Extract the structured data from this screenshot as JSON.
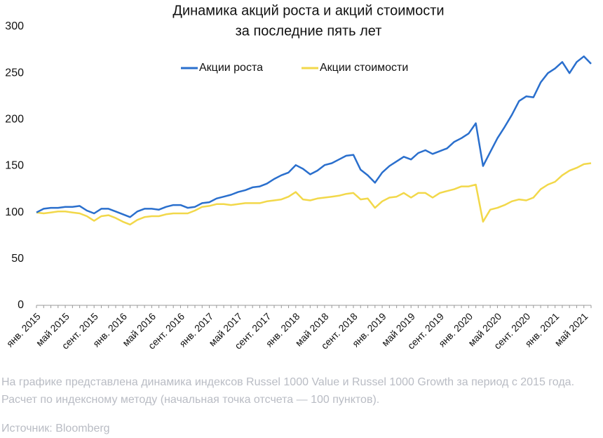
{
  "chart_data": {
    "type": "line",
    "title_lines": [
      "Динамика акций роста и акций стоимости",
      "за последние пять лет"
    ],
    "categories": [
      "янв. 2015",
      null,
      null,
      null,
      "май 2015",
      null,
      null,
      null,
      "сент. 2015",
      null,
      null,
      null,
      "янв. 2016",
      null,
      null,
      null,
      "май 2016",
      null,
      null,
      null,
      "сент. 2016",
      null,
      null,
      null,
      "янв. 2017",
      null,
      null,
      null,
      "май 2017",
      null,
      null,
      null,
      "сент. 2017",
      null,
      null,
      null,
      "янв. 2018",
      null,
      null,
      null,
      "май 2018",
      null,
      null,
      null,
      "сент. 2018",
      null,
      null,
      null,
      "янв. 2019",
      null,
      null,
      null,
      "май 2019",
      null,
      null,
      null,
      "сент. 2019",
      null,
      null,
      null,
      "янв. 2020",
      null,
      null,
      null,
      "май 2020",
      null,
      null,
      null,
      "сент. 2020",
      null,
      null,
      null,
      "янв. 2021",
      null,
      null,
      null,
      "май 2021",
      null
    ],
    "series": [
      {
        "name": "Акции роста",
        "color": "#2a6fcd",
        "values": [
          100,
          104,
          105,
          105,
          106,
          106,
          107,
          102,
          99,
          104,
          104,
          101,
          98,
          95,
          101,
          104,
          104,
          103,
          106,
          108,
          108,
          105,
          106,
          110,
          111,
          115,
          117,
          119,
          122,
          124,
          127,
          128,
          131,
          136,
          140,
          143,
          151,
          147,
          141,
          145,
          151,
          153,
          157,
          161,
          162,
          146,
          140,
          132,
          143,
          150,
          155,
          160,
          157,
          164,
          167,
          163,
          166,
          169,
          176,
          180,
          185,
          196,
          150,
          165,
          180,
          192,
          205,
          220,
          225,
          224,
          240,
          250,
          255,
          262,
          250,
          262,
          268,
          260
        ]
      },
      {
        "name": "Акции стоимости",
        "color": "#f2d84a",
        "values": [
          100,
          99,
          100,
          101,
          101,
          100,
          99,
          96,
          91,
          96,
          97,
          94,
          90,
          87,
          92,
          95,
          96,
          96,
          98,
          99,
          99,
          99,
          102,
          106,
          107,
          109,
          109,
          108,
          109,
          110,
          110,
          110,
          112,
          113,
          114,
          117,
          122,
          114,
          113,
          115,
          116,
          117,
          118,
          120,
          121,
          114,
          115,
          105,
          112,
          116,
          117,
          121,
          116,
          121,
          121,
          116,
          121,
          123,
          125,
          128,
          128,
          130,
          90,
          103,
          105,
          108,
          112,
          114,
          113,
          116,
          125,
          130,
          133,
          140,
          145,
          148,
          152,
          153
        ]
      }
    ],
    "ylim": [
      0,
      300
    ],
    "yticks": [
      0,
      50,
      100,
      150,
      200,
      250,
      300
    ],
    "grid": false,
    "legend": "top"
  },
  "caption": "На графике представлена динамика индексов Russel 1000 Value и Russel 1000 Growth за период с 2015 года. Расчет по индексному методу (начальная точка отсчета — 100 пунктов).",
  "source": "Источник: Bloomberg"
}
